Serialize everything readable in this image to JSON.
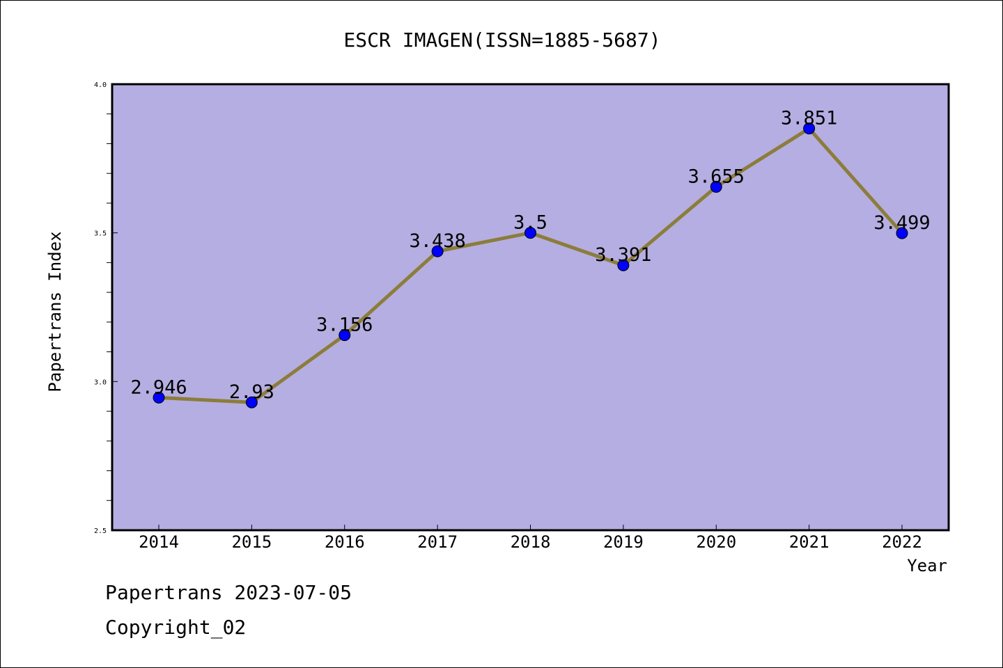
{
  "chart_data": {
    "type": "line",
    "title": "ESCR IMAGEN(ISSN=1885-5687)",
    "xlabel": "Year",
    "ylabel": "Papertrans Index",
    "categories": [
      "2014",
      "2015",
      "2016",
      "2017",
      "2018",
      "2019",
      "2020",
      "2021",
      "2022"
    ],
    "series": [
      {
        "values": [
          2.946,
          2.93,
          3.156,
          3.438,
          3.5,
          3.391,
          3.655,
          3.851,
          3.499
        ],
        "labels": [
          "2.946",
          "2.93",
          "3.156",
          "3.438",
          "3.5",
          "3.391",
          "3.655",
          "3.851",
          "3.499"
        ]
      }
    ],
    "ylim": [
      2.5,
      4.0
    ],
    "yticks": [
      "2.5",
      "3.0",
      "3.5",
      "4.0"
    ],
    "grid": false,
    "colors": {
      "plot_background": "#b5aee2",
      "line": "#8b7d3a",
      "marker": "#0000ff"
    }
  },
  "footer": {
    "date_line": "Papertrans 2023-07-05",
    "copyright_line": "Copyright_02"
  }
}
